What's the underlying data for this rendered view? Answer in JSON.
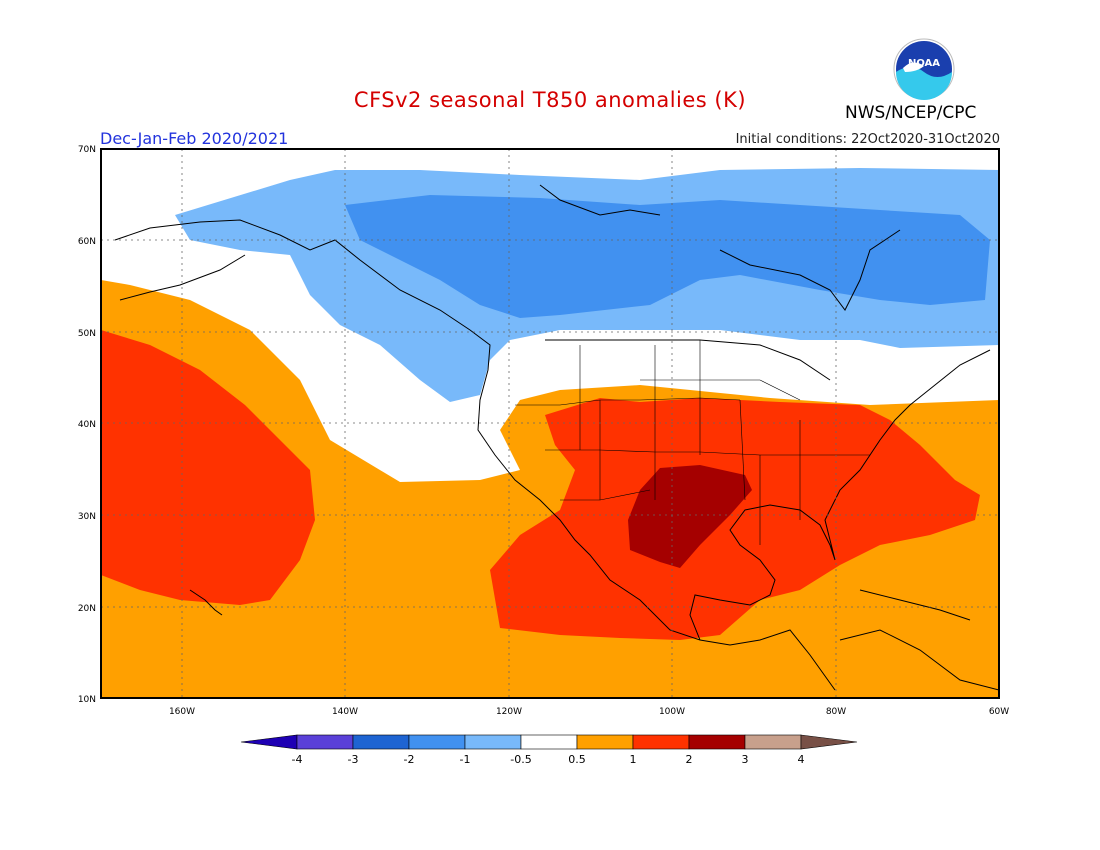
{
  "title": "CFSv2 seasonal T850 anomalies (K)",
  "season": "Dec-Jan-Feb 2020/2021",
  "initial_conditions": "Initial conditions: 22Oct2020-31Oct2020",
  "agency": "NWS/NCEP/CPC",
  "logo_text": "NOAA",
  "lat_labels": [
    "70N",
    "60N",
    "50N",
    "40N",
    "30N",
    "20N",
    "10N"
  ],
  "lon_labels": [
    "160W",
    "140W",
    "120W",
    "100W",
    "80W",
    "60W"
  ],
  "colorbar": {
    "labels": [
      "-4",
      "-3",
      "-2",
      "-1",
      "-0.5",
      "0.5",
      "1",
      "2",
      "3",
      "4"
    ],
    "colors": [
      "#1e00b4",
      "#5a40d8",
      "#1e64d2",
      "#4191f0",
      "#78b9fa",
      "#ffffff",
      "#ffa000",
      "#ff3200",
      "#a50000",
      "#c8a08c",
      "#785046"
    ]
  },
  "map_extent": {
    "lon": [
      -170,
      -60
    ],
    "lat": [
      10,
      70
    ]
  }
}
